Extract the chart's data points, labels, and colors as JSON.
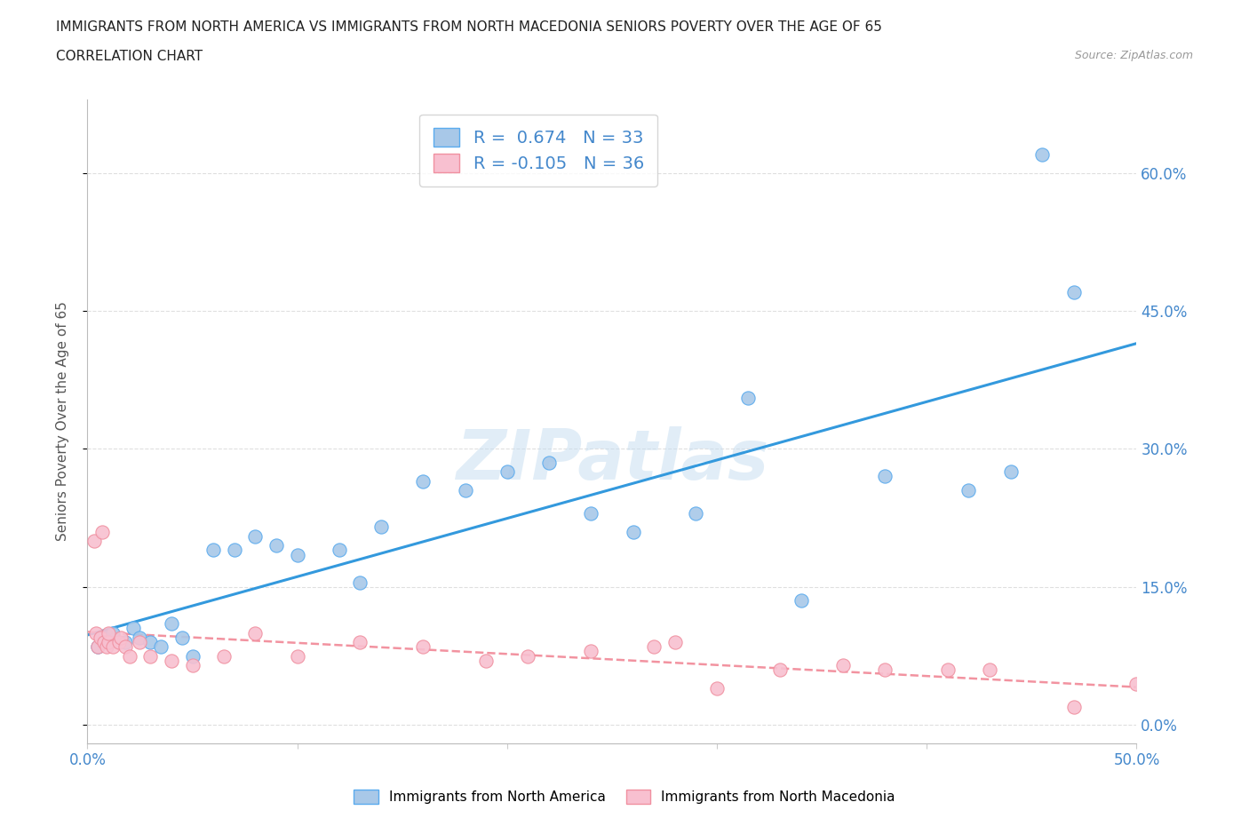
{
  "title_line1": "IMMIGRANTS FROM NORTH AMERICA VS IMMIGRANTS FROM NORTH MACEDONIA SENIORS POVERTY OVER THE AGE OF 65",
  "title_line2": "CORRELATION CHART",
  "source": "Source: ZipAtlas.com",
  "ylabel": "Seniors Poverty Over the Age of 65",
  "xlim": [
    0.0,
    0.5
  ],
  "ylim": [
    -0.02,
    0.68
  ],
  "xticks": [
    0.0,
    0.1,
    0.2,
    0.3,
    0.4,
    0.5
  ],
  "yticks": [
    0.0,
    0.15,
    0.3,
    0.45,
    0.6
  ],
  "ytick_labels": [
    "0.0%",
    "15.0%",
    "30.0%",
    "45.0%",
    "60.0%"
  ],
  "xtick_labels": [
    "0.0%",
    "",
    "",
    "",
    "",
    "50.0%"
  ],
  "blue_R": 0.674,
  "blue_N": 33,
  "pink_R": -0.105,
  "pink_N": 36,
  "blue_color": "#a8c8e8",
  "blue_edge_color": "#5aabee",
  "blue_line_color": "#3399dd",
  "pink_color": "#f8c0d0",
  "pink_edge_color": "#f090a0",
  "pink_line_color": "#f08090",
  "watermark": "ZIPatlas",
  "blue_scatter_x": [
    0.005,
    0.008,
    0.012,
    0.018,
    0.022,
    0.025,
    0.03,
    0.035,
    0.04,
    0.045,
    0.05,
    0.06,
    0.07,
    0.08,
    0.09,
    0.1,
    0.12,
    0.13,
    0.14,
    0.16,
    0.18,
    0.2,
    0.22,
    0.24,
    0.26,
    0.29,
    0.315,
    0.34,
    0.38,
    0.42,
    0.44,
    0.455,
    0.47
  ],
  "blue_scatter_y": [
    0.085,
    0.095,
    0.1,
    0.09,
    0.105,
    0.095,
    0.09,
    0.085,
    0.11,
    0.095,
    0.075,
    0.19,
    0.19,
    0.205,
    0.195,
    0.185,
    0.19,
    0.155,
    0.215,
    0.265,
    0.255,
    0.275,
    0.285,
    0.23,
    0.21,
    0.23,
    0.355,
    0.135,
    0.27,
    0.255,
    0.275,
    0.62,
    0.47
  ],
  "pink_scatter_x": [
    0.003,
    0.004,
    0.005,
    0.006,
    0.007,
    0.008,
    0.009,
    0.01,
    0.01,
    0.012,
    0.015,
    0.016,
    0.018,
    0.02,
    0.025,
    0.03,
    0.04,
    0.05,
    0.065,
    0.08,
    0.1,
    0.13,
    0.16,
    0.19,
    0.21,
    0.24,
    0.27,
    0.28,
    0.3,
    0.33,
    0.36,
    0.38,
    0.41,
    0.43,
    0.47,
    0.5
  ],
  "pink_scatter_y": [
    0.2,
    0.1,
    0.085,
    0.095,
    0.21,
    0.09,
    0.085,
    0.09,
    0.1,
    0.085,
    0.09,
    0.095,
    0.085,
    0.075,
    0.09,
    0.075,
    0.07,
    0.065,
    0.075,
    0.1,
    0.075,
    0.09,
    0.085,
    0.07,
    0.075,
    0.08,
    0.085,
    0.09,
    0.04,
    0.06,
    0.065,
    0.06,
    0.06,
    0.06,
    0.02,
    0.045
  ],
  "grid_color": "#d8d8d8",
  "background_color": "#ffffff"
}
